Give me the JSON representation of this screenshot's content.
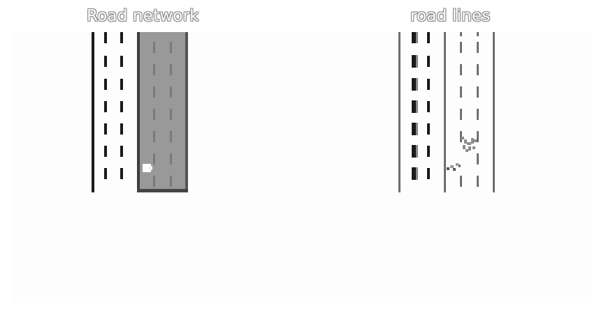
{
  "panels": [
    {
      "title": "Road network",
      "colors": {
        "road_fill": "#999999",
        "road_edge": "#3c3c3c",
        "marking": "#1a1a1a",
        "road_dash": "#7a7a7a",
        "vehicle": "#ffffff"
      }
    },
    {
      "title": "road lines",
      "colors": {
        "line": "#6e6e6e",
        "marking": "#1a1a1a",
        "dash": "#707070",
        "artifact": "#8c8c8c"
      }
    }
  ]
}
